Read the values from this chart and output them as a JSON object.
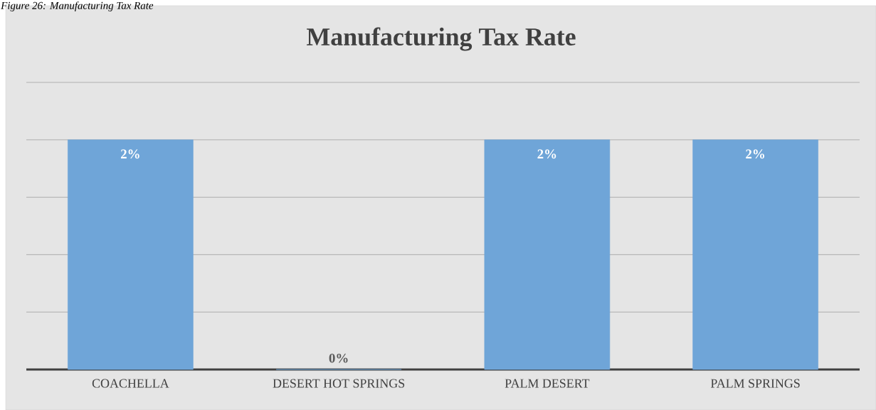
{
  "chart_data": {
    "type": "bar",
    "title": "Manufacturing Tax Rate",
    "annotations": [
      "Figure 26: Manufacturing Tax Rate"
    ],
    "categories": [
      "COACHELLA",
      "DESERT HOT SPRINGS",
      "PALM DESERT",
      "PALM SPRINGS"
    ],
    "values": [
      2,
      0,
      2,
      2
    ],
    "value_labels": [
      "2%",
      "0%",
      "2%",
      "2%"
    ],
    "color": "#6fa5d8",
    "ylim": [
      0,
      2.5
    ],
    "yticks": [
      {
        "value": 0,
        "label": null
      },
      {
        "value": 0.5,
        "label": null
      },
      {
        "value": 1,
        "label": null
      },
      {
        "value": 1.5,
        "label": null
      },
      {
        "value": 2,
        "label": null
      },
      {
        "value": 2.5,
        "label": null
      }
    ],
    "tick_labels": "x",
    "grid": "y"
  }
}
